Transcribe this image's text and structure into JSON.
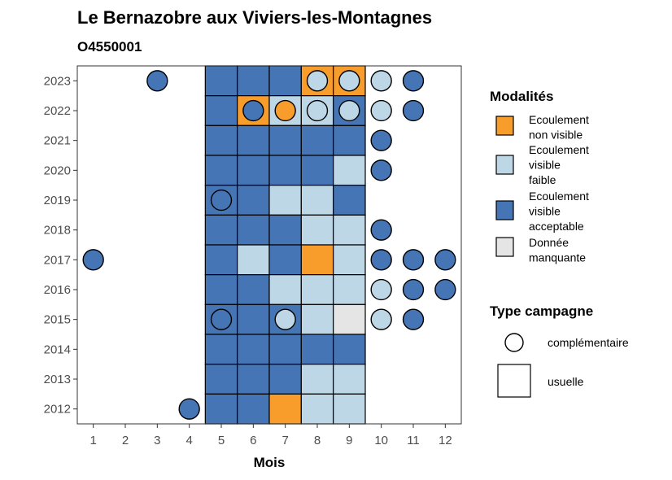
{
  "chart_data": {
    "type": "heatmap",
    "title": "Le Bernazobre aux Viviers-les-Montagnes",
    "subtitle": "O4550001",
    "xlabel": "Mois",
    "ylabel": "",
    "x_ticks": [
      1,
      2,
      3,
      4,
      5,
      6,
      7,
      8,
      9,
      10,
      11,
      12
    ],
    "years": [
      2012,
      2013,
      2014,
      2015,
      2016,
      2017,
      2018,
      2019,
      2020,
      2021,
      2022,
      2023
    ],
    "xlim": [
      0.5,
      12.5
    ],
    "modalites": [
      {
        "key": "non_visible",
        "label_lines": [
          "Ecoulement",
          "non visible"
        ],
        "color": "#F89C2B"
      },
      {
        "key": "faible",
        "label_lines": [
          "Ecoulement",
          "visible",
          "faible"
        ],
        "color": "#BDD7E7"
      },
      {
        "key": "acceptable",
        "label_lines": [
          "Ecoulement",
          "visible",
          "acceptable"
        ],
        "color": "#4575B4"
      },
      {
        "key": "manquante",
        "label_lines": [
          "Donnée",
          "manquante"
        ],
        "color": "#E5E5E5"
      }
    ],
    "campagnes": [
      {
        "key": "complementaire",
        "label": "complémentaire",
        "shape": "circle"
      },
      {
        "key": "usuelle",
        "label": "usuelle",
        "shape": "square"
      }
    ],
    "legend_titles": {
      "modalites": "Modalités",
      "campagne": "Type campagne"
    },
    "usuelle": [
      {
        "year": 2023,
        "month": 5,
        "m": "acceptable"
      },
      {
        "year": 2023,
        "month": 6,
        "m": "acceptable"
      },
      {
        "year": 2023,
        "month": 7,
        "m": "acceptable"
      },
      {
        "year": 2023,
        "month": 8,
        "m": "non_visible"
      },
      {
        "year": 2023,
        "month": 9,
        "m": "non_visible"
      },
      {
        "year": 2022,
        "month": 5,
        "m": "acceptable"
      },
      {
        "year": 2022,
        "month": 6,
        "m": "non_visible"
      },
      {
        "year": 2022,
        "month": 7,
        "m": "faible"
      },
      {
        "year": 2022,
        "month": 8,
        "m": "faible"
      },
      {
        "year": 2022,
        "month": 9,
        "m": "acceptable"
      },
      {
        "year": 2021,
        "month": 5,
        "m": "acceptable"
      },
      {
        "year": 2021,
        "month": 6,
        "m": "acceptable"
      },
      {
        "year": 2021,
        "month": 7,
        "m": "acceptable"
      },
      {
        "year": 2021,
        "month": 8,
        "m": "acceptable"
      },
      {
        "year": 2021,
        "month": 9,
        "m": "acceptable"
      },
      {
        "year": 2020,
        "month": 5,
        "m": "acceptable"
      },
      {
        "year": 2020,
        "month": 6,
        "m": "acceptable"
      },
      {
        "year": 2020,
        "month": 7,
        "m": "acceptable"
      },
      {
        "year": 2020,
        "month": 8,
        "m": "acceptable"
      },
      {
        "year": 2020,
        "month": 9,
        "m": "faible"
      },
      {
        "year": 2019,
        "month": 5,
        "m": "acceptable"
      },
      {
        "year": 2019,
        "month": 6,
        "m": "acceptable"
      },
      {
        "year": 2019,
        "month": 7,
        "m": "faible"
      },
      {
        "year": 2019,
        "month": 8,
        "m": "faible"
      },
      {
        "year": 2019,
        "month": 9,
        "m": "acceptable"
      },
      {
        "year": 2018,
        "month": 5,
        "m": "acceptable"
      },
      {
        "year": 2018,
        "month": 6,
        "m": "acceptable"
      },
      {
        "year": 2018,
        "month": 7,
        "m": "acceptable"
      },
      {
        "year": 2018,
        "month": 8,
        "m": "faible"
      },
      {
        "year": 2018,
        "month": 9,
        "m": "faible"
      },
      {
        "year": 2017,
        "month": 5,
        "m": "acceptable"
      },
      {
        "year": 2017,
        "month": 6,
        "m": "faible"
      },
      {
        "year": 2017,
        "month": 7,
        "m": "acceptable"
      },
      {
        "year": 2017,
        "month": 8,
        "m": "non_visible"
      },
      {
        "year": 2017,
        "month": 9,
        "m": "faible"
      },
      {
        "year": 2016,
        "month": 5,
        "m": "acceptable"
      },
      {
        "year": 2016,
        "month": 6,
        "m": "acceptable"
      },
      {
        "year": 2016,
        "month": 7,
        "m": "faible"
      },
      {
        "year": 2016,
        "month": 8,
        "m": "faible"
      },
      {
        "year": 2016,
        "month": 9,
        "m": "faible"
      },
      {
        "year": 2015,
        "month": 5,
        "m": "acceptable"
      },
      {
        "year": 2015,
        "month": 6,
        "m": "acceptable"
      },
      {
        "year": 2015,
        "month": 7,
        "m": "acceptable"
      },
      {
        "year": 2015,
        "month": 8,
        "m": "faible"
      },
      {
        "year": 2015,
        "month": 9,
        "m": "manquante"
      },
      {
        "year": 2014,
        "month": 5,
        "m": "acceptable"
      },
      {
        "year": 2014,
        "month": 6,
        "m": "acceptable"
      },
      {
        "year": 2014,
        "month": 7,
        "m": "acceptable"
      },
      {
        "year": 2014,
        "month": 8,
        "m": "acceptable"
      },
      {
        "year": 2014,
        "month": 9,
        "m": "acceptable"
      },
      {
        "year": 2013,
        "month": 5,
        "m": "acceptable"
      },
      {
        "year": 2013,
        "month": 6,
        "m": "acceptable"
      },
      {
        "year": 2013,
        "month": 7,
        "m": "acceptable"
      },
      {
        "year": 2013,
        "month": 8,
        "m": "faible"
      },
      {
        "year": 2013,
        "month": 9,
        "m": "faible"
      },
      {
        "year": 2012,
        "month": 5,
        "m": "acceptable"
      },
      {
        "year": 2012,
        "month": 6,
        "m": "acceptable"
      },
      {
        "year": 2012,
        "month": 7,
        "m": "non_visible"
      },
      {
        "year": 2012,
        "month": 8,
        "m": "faible"
      },
      {
        "year": 2012,
        "month": 9,
        "m": "faible"
      }
    ],
    "complementaire": [
      {
        "year": 2023,
        "month": 3,
        "m": "acceptable"
      },
      {
        "year": 2023,
        "month": 8,
        "m": "faible"
      },
      {
        "year": 2023,
        "month": 9,
        "m": "faible"
      },
      {
        "year": 2023,
        "month": 10,
        "m": "faible"
      },
      {
        "year": 2023,
        "month": 11,
        "m": "acceptable"
      },
      {
        "year": 2022,
        "month": 6,
        "m": "acceptable"
      },
      {
        "year": 2022,
        "month": 7,
        "m": "non_visible"
      },
      {
        "year": 2022,
        "month": 8,
        "m": "faible"
      },
      {
        "year": 2022,
        "month": 9,
        "m": "faible"
      },
      {
        "year": 2022,
        "month": 10,
        "m": "faible"
      },
      {
        "year": 2022,
        "month": 11,
        "m": "acceptable"
      },
      {
        "year": 2021,
        "month": 10,
        "m": "acceptable"
      },
      {
        "year": 2020,
        "month": 10,
        "m": "acceptable"
      },
      {
        "year": 2019,
        "month": 5,
        "m": "acceptable"
      },
      {
        "year": 2018,
        "month": 10,
        "m": "acceptable"
      },
      {
        "year": 2017,
        "month": 1,
        "m": "acceptable"
      },
      {
        "year": 2017,
        "month": 10,
        "m": "acceptable"
      },
      {
        "year": 2017,
        "month": 11,
        "m": "acceptable"
      },
      {
        "year": 2017,
        "month": 12,
        "m": "acceptable"
      },
      {
        "year": 2016,
        "month": 10,
        "m": "faible"
      },
      {
        "year": 2016,
        "month": 11,
        "m": "acceptable"
      },
      {
        "year": 2016,
        "month": 12,
        "m": "acceptable"
      },
      {
        "year": 2015,
        "month": 5,
        "m": "acceptable"
      },
      {
        "year": 2015,
        "month": 7,
        "m": "faible"
      },
      {
        "year": 2015,
        "month": 10,
        "m": "faible"
      },
      {
        "year": 2015,
        "month": 11,
        "m": "acceptable"
      },
      {
        "year": 2012,
        "month": 4,
        "m": "acceptable"
      }
    ]
  }
}
